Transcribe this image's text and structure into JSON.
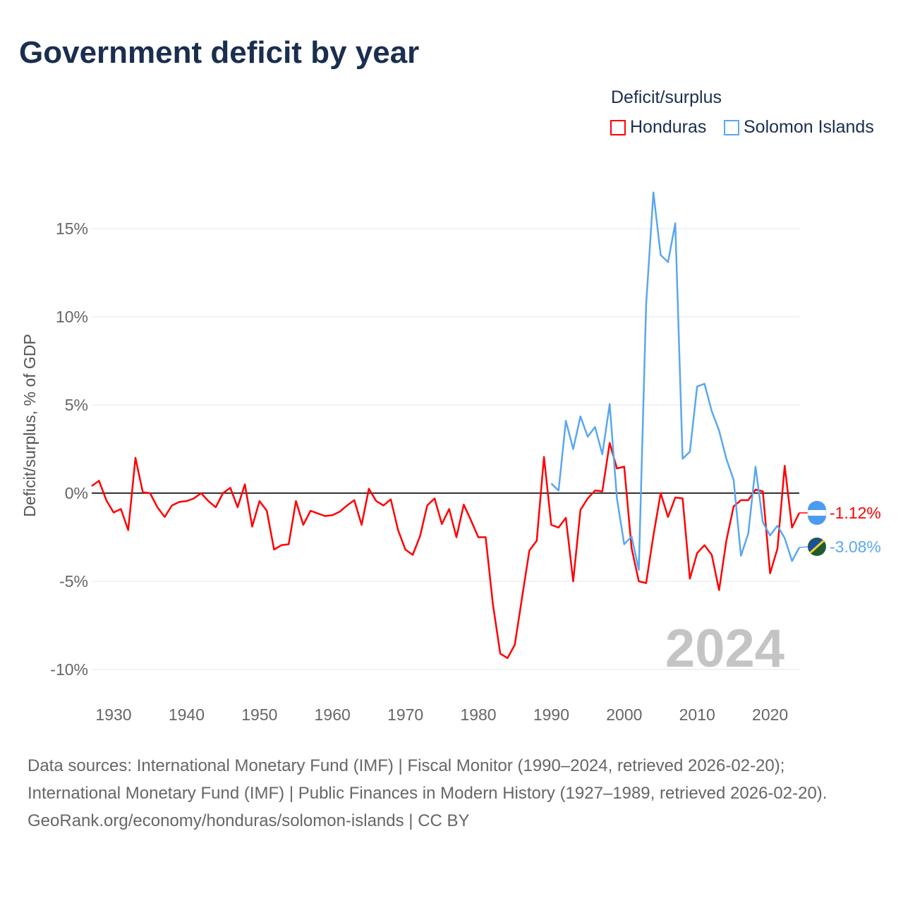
{
  "title": "Government deficit by year",
  "legend": {
    "title": "Deficit/surplus",
    "items": [
      {
        "name": "Honduras",
        "color": "#ff0000"
      },
      {
        "name": "Solomon Islands",
        "color": "#5aa7ef"
      }
    ]
  },
  "watermark_year": "2024",
  "sources": {
    "line1": "Data sources: International Monetary Fund (IMF) | Fiscal Monitor (1990–2024, retrieved 2026-02-20); International Monetary Fund (IMF) | Public Finances in Modern History (1927–1989, retrieved 2026-02-20).",
    "line2": "GeoRank.org/economy/honduras/solomon-islands | CC BY"
  },
  "chart_data": {
    "type": "line",
    "title": "Government deficit by year",
    "xlabel": "",
    "ylabel": "Deficit/surplus, % of GDP",
    "xlim": [
      1927,
      2024
    ],
    "ylim": [
      -12,
      18
    ],
    "yticks": [
      15,
      10,
      5,
      0,
      -5,
      -10
    ],
    "ytick_labels": [
      "15%",
      "10%",
      "5%",
      "0%",
      "-5%",
      "-10%"
    ],
    "xticks": [
      1930,
      1940,
      1950,
      1960,
      1970,
      1980,
      1990,
      2000,
      2010,
      2020
    ],
    "xtick_labels": [
      "1930",
      "1940",
      "1950",
      "1960",
      "1970",
      "1980",
      "1990",
      "2000",
      "2010",
      "2020"
    ],
    "grid": true,
    "legend_position": "top-right",
    "series": [
      {
        "name": "Honduras",
        "color": "#ff0000",
        "start_year": 1927,
        "end_label": "-1.12%",
        "values": [
          0.4,
          0.7,
          -0.4,
          -1.1,
          -0.9,
          -2.1,
          2.0,
          0.05,
          0,
          -0.8,
          -1.35,
          -0.7,
          -0.5,
          -0.45,
          -0.3,
          0,
          -0.45,
          -0.8,
          0,
          0.3,
          -0.8,
          0.5,
          -1.9,
          -0.45,
          -1.0,
          -3.2,
          -2.95,
          -2.9,
          -0.45,
          -1.8,
          -1.0,
          -1.15,
          -1.3,
          -1.25,
          -1.05,
          -0.7,
          -0.4,
          -1.8,
          0.25,
          -0.45,
          -0.7,
          -0.35,
          -2.1,
          -3.2,
          -3.5,
          -2.45,
          -0.7,
          -0.3,
          -1.75,
          -0.9,
          -2.5,
          -0.65,
          -1.55,
          -2.5,
          -2.5,
          -6.3,
          -9.1,
          -9.35,
          -8.6,
          -5.9,
          -3.25,
          -2.7,
          2.05,
          -1.8,
          -1.95,
          -1.4,
          -5.0,
          -0.95,
          -0.3,
          0.15,
          0.1,
          2.85,
          1.4,
          1.5,
          -3.1,
          -5.0,
          -5.1,
          -2.4,
          0,
          -1.35,
          -0.25,
          -0.3,
          -4.85,
          -3.4,
          -2.95,
          -3.5,
          -5.5,
          -2.7,
          -0.75,
          -0.4,
          -0.4,
          0.2,
          0.1,
          -4.55,
          -3.15,
          1.55,
          -1.95,
          -1.12
        ]
      },
      {
        "name": "Solomon Islands",
        "color": "#5aa7ef",
        "start_year": 1990,
        "end_label": "-3.08%",
        "values": [
          0.55,
          0.15,
          4.1,
          2.5,
          4.35,
          3.2,
          3.75,
          2.2,
          5.05,
          -0.3,
          -2.9,
          -2.45,
          -4.35,
          10.7,
          17.05,
          13.5,
          13.1,
          15.3,
          1.95,
          2.35,
          6.05,
          6.2,
          4.65,
          3.55,
          1.95,
          0.75,
          -3.55,
          -2.3,
          1.5,
          -1.65,
          -2.4,
          -1.85,
          -2.55,
          -3.85,
          -3.08
        ]
      }
    ]
  }
}
